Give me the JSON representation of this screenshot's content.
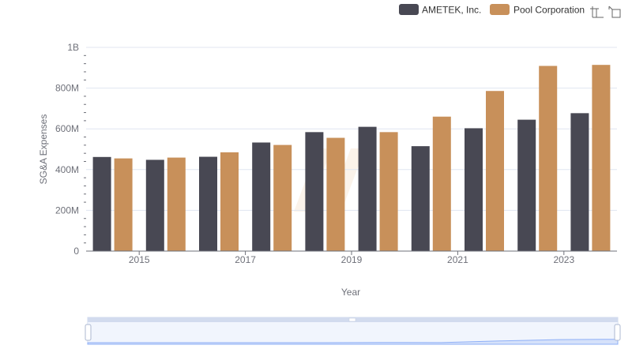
{
  "chart_data": {
    "type": "bar",
    "title": "",
    "xlabel": "Year",
    "ylabel": "SG&A Expenses",
    "ylim": [
      0,
      1000000000
    ],
    "y_ticks": [
      {
        "value": 0,
        "label": "0"
      },
      {
        "value": 200000000,
        "label": "200M"
      },
      {
        "value": 400000000,
        "label": "400M"
      },
      {
        "value": 600000000,
        "label": "600M"
      },
      {
        "value": 800000000,
        "label": "800M"
      },
      {
        "value": 1000000000,
        "label": "1B"
      }
    ],
    "categories": [
      "2014",
      "2015",
      "2016",
      "2017",
      "2018",
      "2019",
      "2020",
      "2021",
      "2022",
      "2023"
    ],
    "x_tick_labels": [
      "2015",
      "2017",
      "2019",
      "2021",
      "2023"
    ],
    "grid": true,
    "legend_position": "top-right",
    "series": [
      {
        "name": "AMETEK, Inc.",
        "color": "#484853",
        "values": [
          462000000,
          448000000,
          463000000,
          533000000,
          584000000,
          610000000,
          515000000,
          603000000,
          645000000,
          677000000
        ]
      },
      {
        "name": "Pool Corporation",
        "color": "#c8905a",
        "values": [
          455000000,
          459000000,
          485000000,
          521000000,
          556000000,
          584000000,
          660000000,
          786000000,
          909000000,
          914000000
        ]
      }
    ]
  },
  "toolbox": {
    "zoom_icon": "zoom-icon",
    "restore_icon": "restore-icon"
  },
  "data_zoom": {
    "range": [
      0,
      100
    ],
    "fill_color": "#dfe8fb",
    "line_color": "#8fb0f7"
  }
}
